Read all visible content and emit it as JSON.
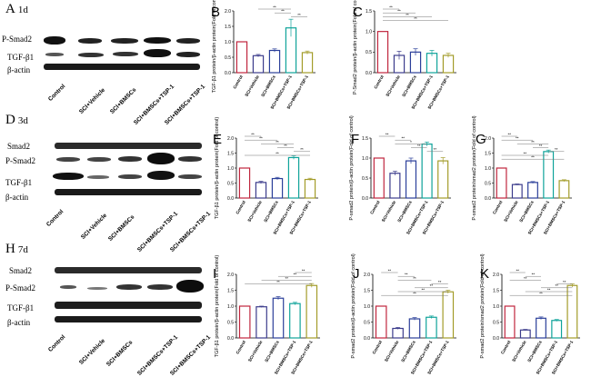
{
  "groups": [
    "Control",
    "SCI+Vehicle",
    "SCI+BMSCs",
    "SCI+BMSCs+TSP-1",
    "SCI+BMSCs+TSP-1"
  ],
  "blots": [
    {
      "panel": "A",
      "day": "1d",
      "rows": [
        "P-Smad2",
        "TGF-β1",
        "β-actin"
      ],
      "lanes": [
        "Control",
        "SCI+Vehicle",
        "SCI+BMSCs",
        "SCI+BMSCs+TSP-1",
        "SCI+BMSCs+TSP-1"
      ]
    },
    {
      "panel": "D",
      "day": "3d",
      "rows": [
        "Smad2",
        "P-Smad2",
        "TGF-β1",
        "β-actin"
      ],
      "lanes": [
        "Control",
        "SCI+Vehicle",
        "SCI+BMSCs",
        "SCI+BMSCs+TSP-1",
        "SCI+BMSCs+TSP-1"
      ]
    },
    {
      "panel": "H",
      "day": "7d",
      "rows": [
        "Smad2",
        "P-Smad2",
        "TGF-β1",
        "β-actin"
      ],
      "lanes": [
        "Control",
        "SCI+Vehicle",
        "SCI+BMSCs",
        "SCI+BMSCs+TSP-1",
        "SCI+BMSCs+TSP-1"
      ]
    }
  ],
  "chart_data": [
    {
      "panel": "B",
      "type": "bar",
      "ylabel": "TGF-β1 protein/β-actin protein(Fold of control)",
      "ylim": [
        0,
        2.0
      ],
      "ticks": [
        "0.0",
        "0.5",
        "1.0",
        "1.5",
        "2.0"
      ],
      "values": [
        1.0,
        0.55,
        0.72,
        1.45,
        0.65
      ],
      "errors": [
        0,
        0.04,
        0.05,
        0.28,
        0.05
      ],
      "sig": [
        {
          "a": 1,
          "b": 3,
          "t": "**"
        },
        {
          "a": 2,
          "b": 3,
          "t": "**"
        },
        {
          "a": 3,
          "b": 4,
          "t": "**"
        }
      ]
    },
    {
      "panel": "C",
      "type": "bar",
      "ylabel": "P-Smad2 protein/β-actin protein(Fold of control)",
      "ylim": [
        0,
        1.5
      ],
      "ticks": [
        "0.0",
        "0.5",
        "1.0",
        "1.5"
      ],
      "values": [
        1.0,
        0.42,
        0.5,
        0.47,
        0.42
      ],
      "errors": [
        0,
        0.1,
        0.08,
        0.07,
        0.05
      ],
      "sig": [
        {
          "a": 0,
          "b": 1,
          "t": "**"
        },
        {
          "a": 0,
          "b": 2,
          "t": "**"
        },
        {
          "a": 0,
          "b": 3,
          "t": "**"
        },
        {
          "a": 0,
          "b": 4,
          "t": "**"
        }
      ]
    },
    {
      "panel": "E",
      "type": "bar",
      "ylabel": "TGF-β1 protein/β-actin protein(Fold of control)",
      "ylim": [
        0,
        2.0
      ],
      "ticks": [
        "0.0",
        "0.5",
        "1.0",
        "1.5",
        "2.0"
      ],
      "values": [
        1.0,
        0.52,
        0.65,
        1.35,
        0.62
      ],
      "errors": [
        0,
        0.04,
        0.04,
        0.06,
        0.04
      ],
      "sig": [
        {
          "a": 0,
          "b": 1,
          "t": "**"
        },
        {
          "a": 0,
          "b": 2,
          "t": "**"
        },
        {
          "a": 1,
          "b": 3,
          "t": "**"
        },
        {
          "a": 2,
          "b": 3,
          "t": "**"
        },
        {
          "a": 3,
          "b": 4,
          "t": "**"
        },
        {
          "a": 0,
          "b": 4,
          "t": "**"
        }
      ]
    },
    {
      "panel": "F",
      "type": "bar",
      "ylabel": "P-smad2 protein/β-actin protein(Fold of control)",
      "ylim": [
        0,
        1.5
      ],
      "ticks": [
        "0.0",
        "0.5",
        "1.0",
        "1.5"
      ],
      "values": [
        1.0,
        0.62,
        0.93,
        1.35,
        0.93
      ],
      "errors": [
        0,
        0.05,
        0.07,
        0.05,
        0.08
      ],
      "sig": [
        {
          "a": 0,
          "b": 1,
          "t": "**"
        },
        {
          "a": 1,
          "b": 2,
          "t": "**"
        },
        {
          "a": 1,
          "b": 3,
          "t": "*"
        },
        {
          "a": 2,
          "b": 3,
          "t": "**"
        },
        {
          "a": 3,
          "b": 4,
          "t": "**"
        }
      ]
    },
    {
      "panel": "G",
      "type": "bar",
      "ylabel": "P-smad2 protein/smad2 protein(Fold of control)",
      "ylim": [
        0,
        2.0
      ],
      "ticks": [
        "0.0",
        "0.5",
        "1.0",
        "1.5",
        "2.0"
      ],
      "values": [
        1.0,
        0.45,
        0.52,
        1.55,
        0.58
      ],
      "errors": [
        0,
        0.02,
        0.03,
        0.05,
        0.03
      ],
      "sig": [
        {
          "a": 0,
          "b": 1,
          "t": "**"
        },
        {
          "a": 0,
          "b": 2,
          "t": "**"
        },
        {
          "a": 1,
          "b": 3,
          "t": "**"
        },
        {
          "a": 2,
          "b": 3,
          "t": "**"
        },
        {
          "a": 3,
          "b": 4,
          "t": "**"
        },
        {
          "a": 0,
          "b": 3,
          "t": "**"
        },
        {
          "a": 0,
          "b": 4,
          "t": "**"
        }
      ]
    },
    {
      "panel": "I",
      "type": "bar",
      "ylabel": "TGF-β1 protein/β-actin protein(Fold of control)",
      "ylim": [
        0,
        2.0
      ],
      "ticks": [
        "0.0",
        "0.5",
        "1.0",
        "1.5",
        "2.0"
      ],
      "values": [
        1.0,
        0.98,
        1.25,
        1.08,
        1.65
      ],
      "errors": [
        0,
        0.02,
        0.05,
        0.04,
        0.06
      ],
      "sig": [
        {
          "a": 3,
          "b": 4,
          "t": "**"
        },
        {
          "a": 2,
          "b": 4,
          "t": "**"
        },
        {
          "a": 1,
          "b": 4,
          "t": "**"
        },
        {
          "a": 0,
          "b": 4,
          "t": "**"
        }
      ]
    },
    {
      "panel": "J",
      "type": "bar",
      "ylabel": "P-smad2 protein/β-actin protein(Fold of control)",
      "ylim": [
        0,
        2.0
      ],
      "ticks": [
        "0.0",
        "0.5",
        "1.0",
        "1.5",
        "2.0"
      ],
      "values": [
        1.0,
        0.3,
        0.6,
        0.65,
        1.45
      ],
      "errors": [
        0,
        0.03,
        0.04,
        0.04,
        0.05
      ],
      "sig": [
        {
          "a": 0,
          "b": 1,
          "t": "**"
        },
        {
          "a": 1,
          "b": 2,
          "t": "**"
        },
        {
          "a": 1,
          "b": 3,
          "t": "**"
        },
        {
          "a": 3,
          "b": 4,
          "t": "**"
        },
        {
          "a": 2,
          "b": 4,
          "t": "**"
        },
        {
          "a": 1,
          "b": 4,
          "t": "**"
        },
        {
          "a": 0,
          "b": 4,
          "t": "**"
        }
      ]
    },
    {
      "panel": "K",
      "type": "bar",
      "ylabel": "P-smad2 protein/smad2 protein(Fold of control)",
      "ylim": [
        0,
        2.0
      ],
      "ticks": [
        "0.0",
        "0.5",
        "1.0",
        "1.5",
        "2.0"
      ],
      "values": [
        1.0,
        0.25,
        0.62,
        0.55,
        1.65
      ],
      "errors": [
        0,
        0.02,
        0.04,
        0.03,
        0.05
      ],
      "sig": [
        {
          "a": 0,
          "b": 1,
          "t": "**"
        },
        {
          "a": 1,
          "b": 2,
          "t": "**"
        },
        {
          "a": 0,
          "b": 2,
          "t": "**"
        },
        {
          "a": 3,
          "b": 4,
          "t": "**"
        },
        {
          "a": 2,
          "b": 4,
          "t": "**"
        },
        {
          "a": 1,
          "b": 4,
          "t": "**"
        },
        {
          "a": 0,
          "b": 4,
          "t": "**"
        }
      ]
    }
  ],
  "colors": {
    "bars": [
      "#c0263e",
      "#3c3c8c",
      "#2b3f9a",
      "#0fa39a",
      "#a39c2a"
    ],
    "axis": "#000000"
  }
}
